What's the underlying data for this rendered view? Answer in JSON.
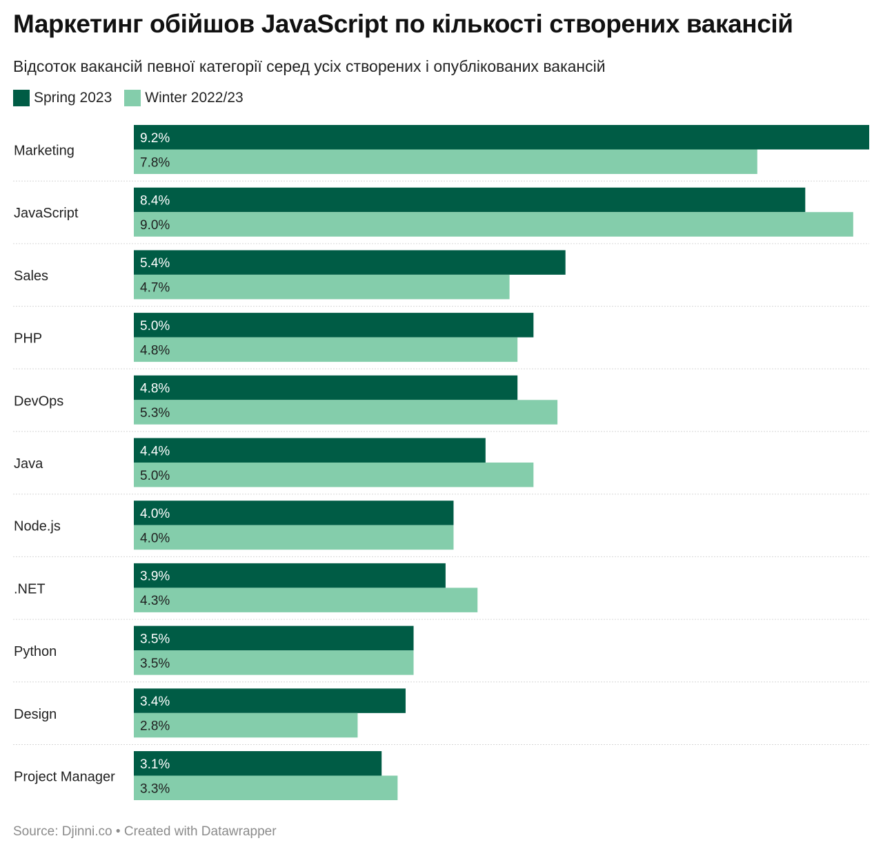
{
  "header": {
    "title": "Маркетинг обійшов JavaScript по кількості створених вакансій",
    "subtitle": "Відсоток вакансій певної категорії серед усіх створених і опублікованих вакансій"
  },
  "legend": {
    "items": [
      {
        "label": "Spring 2023",
        "color": "#005c45"
      },
      {
        "label": "Winter 2022/23",
        "color": "#84cdab"
      }
    ]
  },
  "footer": {
    "source_label": "Source: Djinni.co",
    "separator": "•",
    "created_label": "Created with Datawrapper"
  },
  "chart_data": {
    "type": "bar",
    "orientation": "horizontal",
    "title": "Маркетинг обійшов JavaScript по кількості створених вакансій",
    "subtitle": "Відсоток вакансій певної категорії серед усіх створених і опублікованих вакансій",
    "categories": [
      "Marketing",
      "JavaScript",
      "Sales",
      "PHP",
      "DevOps",
      "Java",
      "Node.js",
      ".NET",
      "Python",
      "Design",
      "Project Manager"
    ],
    "series": [
      {
        "name": "Spring 2023",
        "color": "#005c45",
        "values": [
          9.2,
          8.4,
          5.4,
          5.0,
          4.8,
          4.4,
          4.0,
          3.9,
          3.5,
          3.4,
          3.1
        ]
      },
      {
        "name": "Winter 2022/23",
        "color": "#84cdab",
        "values": [
          7.8,
          9.0,
          4.7,
          4.8,
          5.3,
          5.0,
          4.0,
          4.3,
          3.5,
          2.8,
          3.3
        ]
      }
    ],
    "value_suffix": "%",
    "xlim": [
      0,
      9.2
    ],
    "legend_position": "top-left",
    "grid": false,
    "source": "Source: Djinni.co"
  }
}
